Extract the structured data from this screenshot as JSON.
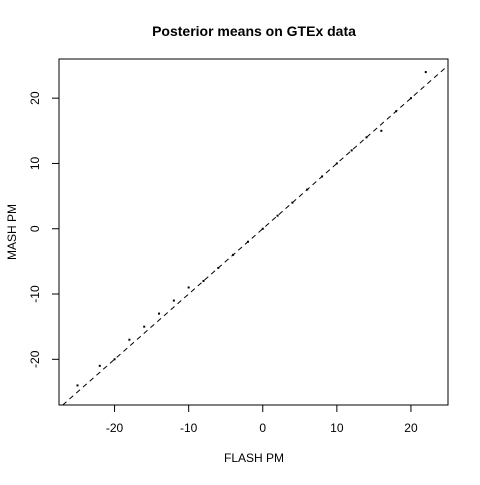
{
  "chart_data": {
    "type": "scatter",
    "title": "Posterior means on GTEx data",
    "xlabel": "FLASH PM",
    "ylabel": "MASH PM",
    "xlim": [
      -27.5,
      25
    ],
    "ylim": [
      -27,
      26
    ],
    "xticks": [
      -20,
      -10,
      0,
      10,
      20
    ],
    "yticks": [
      -20,
      -10,
      0,
      10,
      20
    ],
    "grid": false,
    "reference_line": {
      "intercept": 0,
      "slope": 1,
      "style": "dashed",
      "color": "#000000"
    },
    "point_color": "#000000",
    "series": [
      {
        "values_description_is_dense_cloud": false,
        "points_sample": [
          [
            -25,
            -24
          ],
          [
            -22,
            -21
          ],
          [
            -20,
            -20
          ],
          [
            -18,
            -17
          ],
          [
            -16,
            -15
          ],
          [
            -14,
            -13
          ],
          [
            -12,
            -11
          ],
          [
            -10,
            -9
          ],
          [
            -8,
            -8
          ],
          [
            -6,
            -6
          ],
          [
            -4,
            -4
          ],
          [
            -2,
            -2
          ],
          [
            0,
            0
          ],
          [
            2,
            2
          ],
          [
            4,
            4
          ],
          [
            6,
            6
          ],
          [
            8,
            8
          ],
          [
            10,
            10
          ],
          [
            12,
            12
          ],
          [
            14,
            14
          ],
          [
            16,
            15
          ],
          [
            18,
            18
          ],
          [
            20,
            20
          ],
          [
            22,
            24
          ]
        ]
      }
    ]
  }
}
